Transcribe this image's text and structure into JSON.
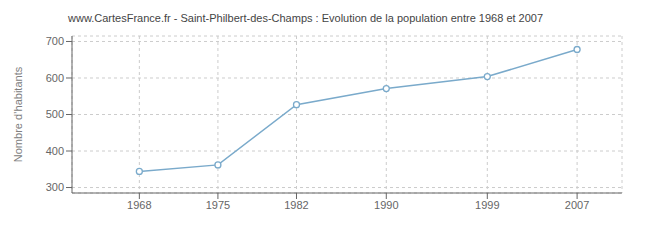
{
  "chart_data": {
    "type": "line",
    "title": "www.CartesFrance.fr - Saint-Philbert-des-Champs : Evolution de la population entre 1968 et 2007",
    "y_label": "Nombre d’habitants",
    "x": [
      1968,
      1975,
      1982,
      1990,
      1999,
      2007
    ],
    "values": [
      344,
      362,
      527,
      571,
      604,
      678
    ],
    "color": "#7aaacb",
    "marker": "circle",
    "xlim": [
      1962,
      2011
    ],
    "ylim": [
      285,
      715
    ],
    "xticks": [
      1968,
      1975,
      1982,
      1990,
      1999,
      2007
    ],
    "yticks": [
      300,
      400,
      500,
      600,
      700
    ],
    "grid": true
  }
}
